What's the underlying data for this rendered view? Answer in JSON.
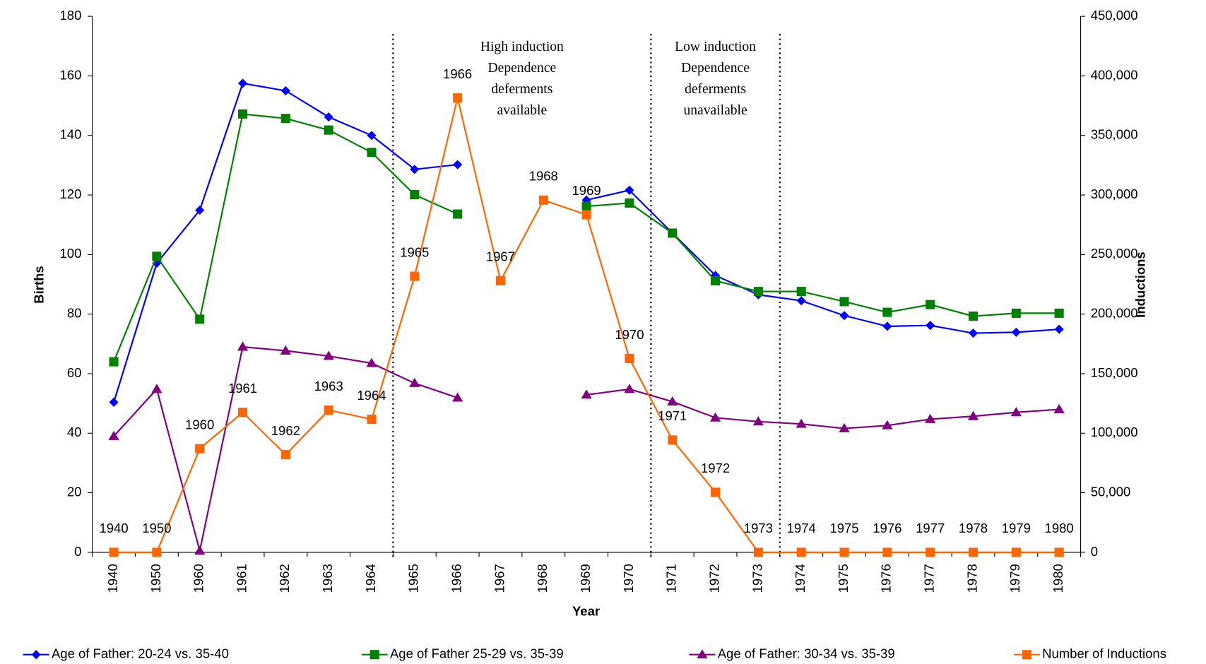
{
  "chart_data": {
    "type": "line",
    "xlabel": "Year",
    "ylabel": "Births",
    "y2label": "Inductions",
    "categories": [
      "1940",
      "1950",
      "1960",
      "1961",
      "1962",
      "1963",
      "1964",
      "1965",
      "1966",
      "1967",
      "1968",
      "1969",
      "1970",
      "1971",
      "1972",
      "1973",
      "1974",
      "1975",
      "1976",
      "1977",
      "1978",
      "1979",
      "1980"
    ],
    "ylim": [
      0,
      180
    ],
    "yticks": [
      0,
      20,
      40,
      60,
      80,
      100,
      120,
      140,
      160,
      180
    ],
    "y2lim": [
      0,
      450000
    ],
    "y2ticks": [
      {
        "value": 0,
        "label": "0"
      },
      {
        "value": 50000,
        "label": "50,000"
      },
      {
        "value": 100000,
        "label": "100,000"
      },
      {
        "value": 150000,
        "label": "150,000"
      },
      {
        "value": 200000,
        "label": "200,000"
      },
      {
        "value": 250000,
        "label": "250,000"
      },
      {
        "value": 300000,
        "label": "300,000"
      },
      {
        "value": 350000,
        "label": "350,000"
      },
      {
        "value": 400000,
        "label": "400,000"
      },
      {
        "value": 450000,
        "label": "450,000"
      }
    ],
    "series": [
      {
        "name": "Age of Father: 20-24 vs. 35-40",
        "color": "#0000ff",
        "marker": "diamond",
        "values": [
          50.4,
          97.1,
          114.9,
          157.5,
          155,
          146.2,
          140,
          128.6,
          130.2,
          null,
          null,
          118.3,
          121.6,
          107.2,
          93,
          86.5,
          84.5,
          79.5,
          75.9,
          76.2,
          73.6,
          73.9,
          74.9
        ]
      },
      {
        "name": "Age of Father 25-29 vs. 35-39",
        "color": "#008000",
        "marker": "square",
        "values": [
          64,
          99.4,
          78.3,
          147.2,
          145.7,
          141.8,
          134.3,
          120.1,
          113.6,
          null,
          null,
          116.2,
          117.3,
          107.2,
          91.2,
          87.6,
          87.6,
          84.2,
          80.6,
          83.2,
          79.3,
          80.3,
          80.3
        ]
      },
      {
        "name": "Age of Father: 30-34 vs. 35-39",
        "color": "#800080",
        "marker": "triangle",
        "values": [
          39,
          54.8,
          0.5,
          69,
          67.7,
          65.9,
          63.5,
          56.8,
          51.9,
          null,
          null,
          52.9,
          54.8,
          50.6,
          45.2,
          43.9,
          43.1,
          41.6,
          42.6,
          44.7,
          45.7,
          47,
          48
        ]
      },
      {
        "name": "Number of Inductions",
        "color": "#ff6600",
        "marker": "square",
        "axis": "y2",
        "point_labels": true,
        "values": [
          0,
          0,
          87000,
          117500,
          82000,
          119400,
          111700,
          231800,
          381500,
          228000,
          295700,
          283400,
          162700,
          94300,
          50400,
          0,
          0,
          0,
          0,
          0,
          0,
          0,
          0
        ]
      }
    ],
    "annotations": [
      {
        "lines": [
          "High induction",
          "Dependence",
          "deferments",
          "available"
        ]
      },
      {
        "lines": [
          "Low induction",
          "Dependence",
          "deferments",
          "unavailable"
        ]
      }
    ]
  }
}
